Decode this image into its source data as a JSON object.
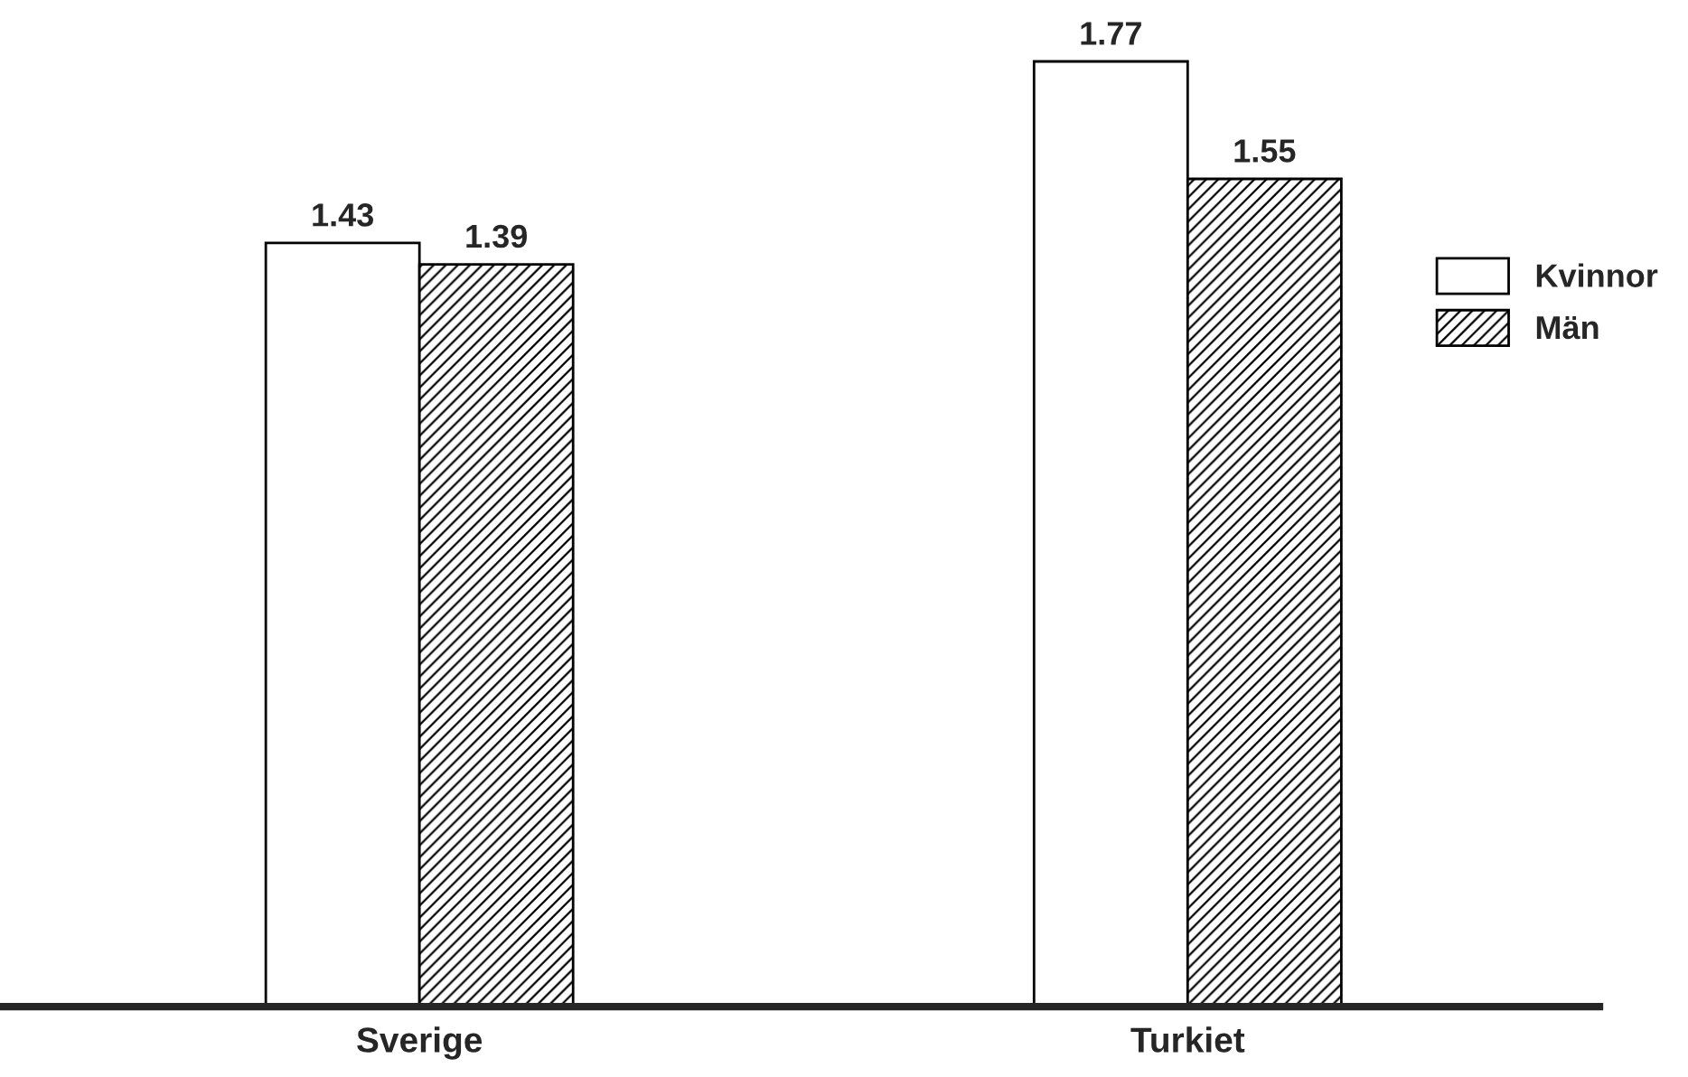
{
  "chart_data": {
    "type": "bar",
    "categories": [
      "Sverige",
      "Turkiet"
    ],
    "series": [
      {
        "name": "Kvinnor",
        "color": "#ffffff",
        "values": [
          1.43,
          1.77
        ]
      },
      {
        "name": "Män",
        "color": "#000000",
        "values": [
          1.39,
          1.55
        ]
      }
    ],
    "data_labels": true,
    "legend": "right",
    "grid": false
  }
}
